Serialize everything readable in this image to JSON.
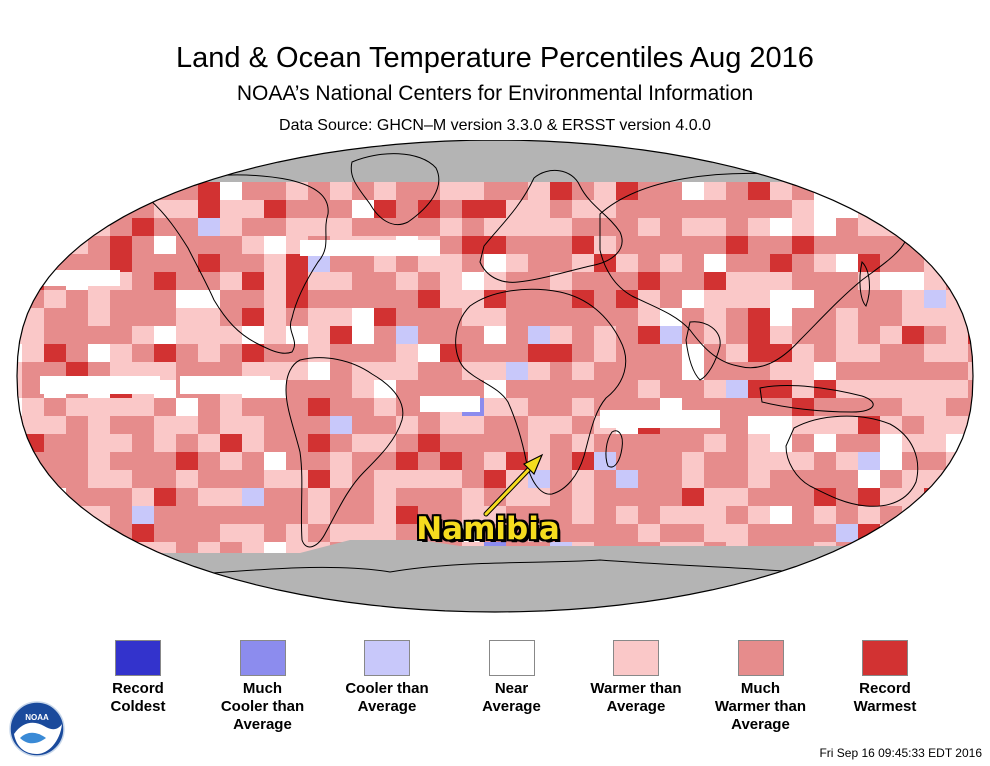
{
  "header": {
    "title": "Land & Ocean Temperature Percentiles Aug 2016",
    "subtitle": "NOAA’s National Centers for Environmental Information",
    "source": "Data Source: GHCN–M version 3.3.0 & ERSST version 4.0.0"
  },
  "map": {
    "projection": "robinson",
    "colors": {
      "record_coldest": "#3333cc",
      "much_cooler": "#8c8cee",
      "cooler": "#c8c8fa",
      "near": "#ffffff",
      "warmer": "#fac8c8",
      "much_warmer": "#e68c8c",
      "record_warmest": "#d23232",
      "missing": "#b4b4b4",
      "coastline": "#000000"
    },
    "callout": {
      "label": "Namibia",
      "text_color": "#f5dc1e",
      "arrow_color": "#f5dc1e"
    }
  },
  "legend": {
    "items": [
      {
        "label": "Record\nColdest",
        "color": "#3333cc"
      },
      {
        "label": "Much\nCooler than\nAverage",
        "color": "#8c8cee"
      },
      {
        "label": "Cooler than\nAverage",
        "color": "#c8c8fa"
      },
      {
        "label": "Near\nAverage",
        "color": "#ffffff"
      },
      {
        "label": "Warmer than\nAverage",
        "color": "#fac8c8"
      },
      {
        "label": "Much\nWarmer than\nAverage",
        "color": "#e68c8c"
      },
      {
        "label": "Record\nWarmest",
        "color": "#d23232"
      }
    ]
  },
  "footer": {
    "timestamp": "Fri Sep 16 09:45:33 EDT 2016",
    "logo_text": "NOAA"
  }
}
